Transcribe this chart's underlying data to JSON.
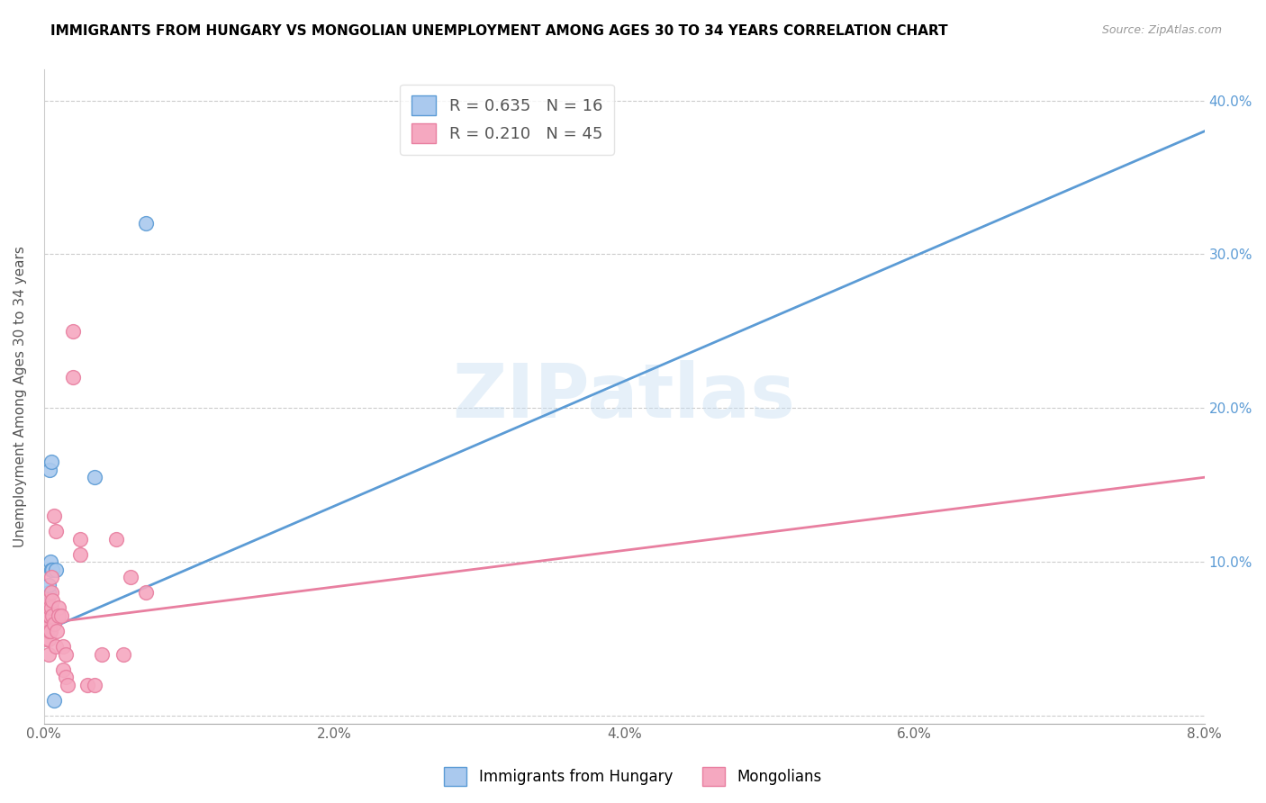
{
  "title": "IMMIGRANTS FROM HUNGARY VS MONGOLIAN UNEMPLOYMENT AMONG AGES 30 TO 34 YEARS CORRELATION CHART",
  "source": "Source: ZipAtlas.com",
  "ylabel": "Unemployment Among Ages 30 to 34 years",
  "xlim": [
    0.0,
    0.08
  ],
  "ylim": [
    -0.005,
    0.42
  ],
  "xticks": [
    0.0,
    0.01,
    0.02,
    0.03,
    0.04,
    0.05,
    0.06,
    0.07,
    0.08
  ],
  "xtick_labels": [
    "0.0%",
    "",
    "2.0%",
    "",
    "4.0%",
    "",
    "6.0%",
    "",
    "8.0%"
  ],
  "yticks": [
    0.0,
    0.1,
    0.2,
    0.3,
    0.4
  ],
  "ytick_labels": [
    "",
    "10.0%",
    "20.0%",
    "30.0%",
    "40.0%"
  ],
  "legend_hungary": "R = 0.635   N = 16",
  "legend_mongolia": "R = 0.210   N = 45",
  "color_hungary": "#aac9ee",
  "color_mongolia": "#f5a8c0",
  "line_color_hungary": "#5b9bd5",
  "line_color_mongolia": "#e87fa0",
  "watermark": "ZIPatlas",
  "hungary_x": [
    0.00015,
    0.0002,
    0.00025,
    0.0003,
    0.0003,
    0.00035,
    0.0004,
    0.0004,
    0.00045,
    0.0005,
    0.0005,
    0.0006,
    0.0007,
    0.0008,
    0.0035,
    0.007
  ],
  "hungary_y": [
    0.065,
    0.07,
    0.075,
    0.065,
    0.08,
    0.085,
    0.07,
    0.16,
    0.1,
    0.095,
    0.165,
    0.095,
    0.01,
    0.095,
    0.155,
    0.32
  ],
  "mongolia_x": [
    5e-05,
    0.0001,
    0.0001,
    0.00015,
    0.00015,
    0.0002,
    0.0002,
    0.00025,
    0.00025,
    0.0003,
    0.0003,
    0.0003,
    0.0004,
    0.0004,
    0.0004,
    0.00045,
    0.0005,
    0.0005,
    0.0005,
    0.0006,
    0.0006,
    0.0007,
    0.0007,
    0.0008,
    0.0008,
    0.0009,
    0.001,
    0.001,
    0.0012,
    0.0013,
    0.0013,
    0.0015,
    0.0015,
    0.0016,
    0.002,
    0.002,
    0.0025,
    0.003,
    0.0035,
    0.004,
    0.0055,
    0.006,
    0.007,
    0.0025,
    0.005
  ],
  "mongolia_y": [
    0.06,
    0.055,
    0.065,
    0.05,
    0.07,
    0.055,
    0.065,
    0.06,
    0.075,
    0.065,
    0.05,
    0.04,
    0.055,
    0.065,
    0.07,
    0.055,
    0.08,
    0.09,
    0.07,
    0.065,
    0.075,
    0.06,
    0.13,
    0.12,
    0.045,
    0.055,
    0.07,
    0.065,
    0.065,
    0.045,
    0.03,
    0.025,
    0.04,
    0.02,
    0.22,
    0.25,
    0.115,
    0.02,
    0.02,
    0.04,
    0.04,
    0.09,
    0.08,
    0.105,
    0.115
  ],
  "hungary_trend_x": [
    0.0,
    0.08
  ],
  "hungary_trend_y": [
    0.055,
    0.38
  ],
  "mongolia_trend_x": [
    0.0,
    0.08
  ],
  "mongolia_trend_y": [
    0.06,
    0.155
  ]
}
